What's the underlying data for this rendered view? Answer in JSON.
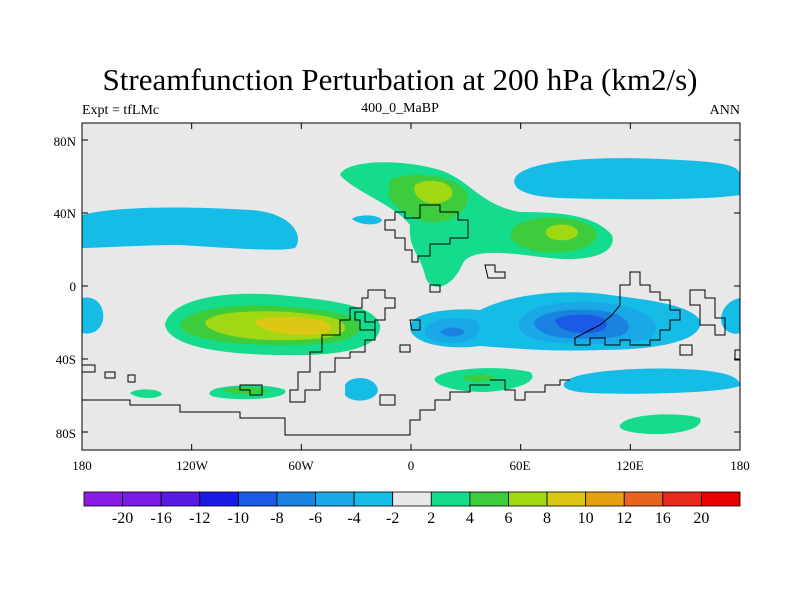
{
  "header": {
    "title": "Streamfunction Perturbation at 200 hPa (km2/s)",
    "left": "Expt = tfLMc",
    "center": "400_0_MaBP",
    "right": "ANN"
  },
  "map": {
    "field": "streamfunction perturbation",
    "level": "200 hPa",
    "units": "km2/s",
    "lat_ticks": [
      "80N",
      "40N",
      "0",
      "40S",
      "80S"
    ],
    "lon_ticks": [
      "180",
      "120W",
      "60W",
      "0",
      "60E",
      "120E",
      "180"
    ],
    "background_color": "#e8e8e8"
  },
  "legend": {
    "labels": [
      "-20",
      "-16",
      "-12",
      "-10",
      "-8",
      "-6",
      "-4",
      "-2",
      "2",
      "4",
      "6",
      "8",
      "10",
      "12",
      "16",
      "20"
    ],
    "colors": [
      "#8a1ae6",
      "#7a1ae6",
      "#5a1ae6",
      "#1a1ae6",
      "#1a5ae6",
      "#1a82e0",
      "#1aa8e6",
      "#14bce6",
      "#e8e8e8",
      "#14dc8c",
      "#3ccc3c",
      "#a0d814",
      "#dcc814",
      "#e6a014",
      "#e6641e",
      "#e6281e",
      "#e60000"
    ]
  }
}
